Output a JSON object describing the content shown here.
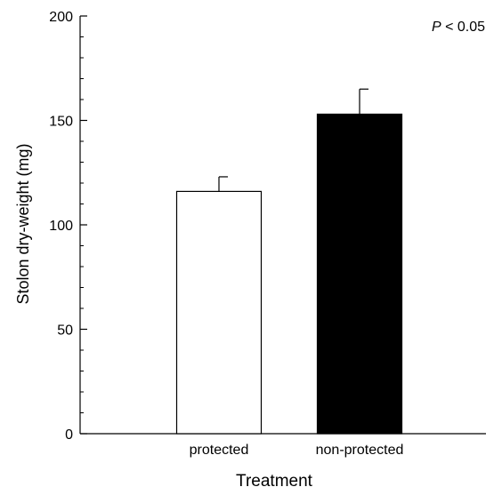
{
  "chart_data": {
    "type": "bar",
    "categories": [
      "protected",
      "non-protected"
    ],
    "values": [
      116,
      153
    ],
    "errors": [
      7,
      12
    ],
    "bar_colors": [
      "#ffffff",
      "#000000"
    ],
    "bar_edge_color": "#000000",
    "xlabel": "Treatment",
    "ylabel": "Stolon dry-weight (mg)",
    "ylim": [
      0,
      200
    ],
    "yticks": [
      0,
      50,
      100,
      150,
      200
    ],
    "y_minor_tick_step": 10,
    "grid": false,
    "legend": "none",
    "annotation": {
      "prefix": "P",
      "text": " < 0.05",
      "placement": "top-right"
    }
  }
}
